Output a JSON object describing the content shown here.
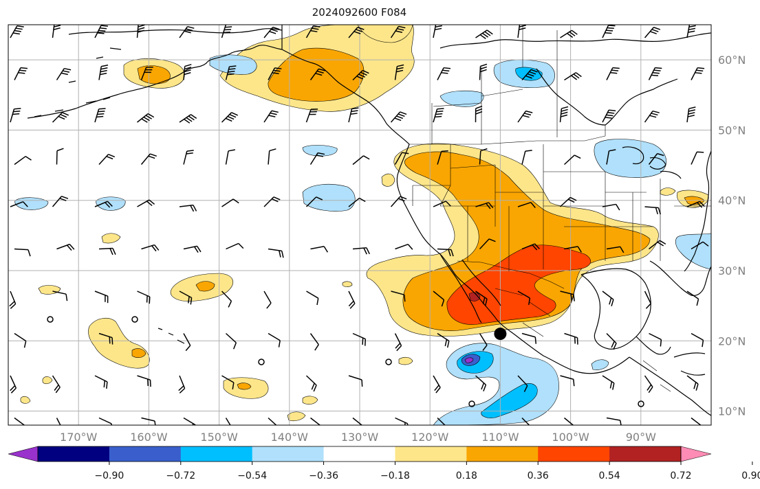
{
  "title": "2024092600 F084",
  "map": {
    "lon_range": [
      -180,
      -80
    ],
    "lat_range": [
      8,
      65
    ],
    "lon_ticks": [
      {
        "lon": -170,
        "label": "170°W"
      },
      {
        "lon": -160,
        "label": "160°W"
      },
      {
        "lon": -150,
        "label": "150°W"
      },
      {
        "lon": -140,
        "label": "140°W"
      },
      {
        "lon": -130,
        "label": "130°W"
      },
      {
        "lon": -120,
        "label": "120°W"
      },
      {
        "lon": -110,
        "label": "110°W"
      },
      {
        "lon": -100,
        "label": "100°W"
      },
      {
        "lon": -90,
        "label": "90°W"
      }
    ],
    "lat_ticks": [
      {
        "lat": 60,
        "label": "60°N"
      },
      {
        "lat": 50,
        "label": "50°N"
      },
      {
        "lat": 40,
        "label": "40°N"
      },
      {
        "lat": 30,
        "label": "30°N"
      },
      {
        "lat": 20,
        "label": "20°N"
      },
      {
        "lat": 10,
        "label": "10°N"
      }
    ],
    "marker": {
      "lon": -110,
      "lat": 21
    }
  },
  "colorbar": {
    "tick_labels": [
      "−0.90",
      "−0.72",
      "−0.54",
      "−0.36",
      "−0.18",
      "0.18",
      "0.36",
      "0.54",
      "0.72",
      "0.90"
    ],
    "colors": [
      "#9932cc",
      "#000080",
      "#3a5fcd",
      "#00bfff",
      "#b0e0fb",
      "#ffffff",
      "#fde68a",
      "#f9a602",
      "#ff4500",
      "#b22222",
      "#ff8cb4"
    ]
  },
  "colors": {
    "grid": "#b0b0b0",
    "land_line": "#000000",
    "tick_text": "#808080"
  }
}
